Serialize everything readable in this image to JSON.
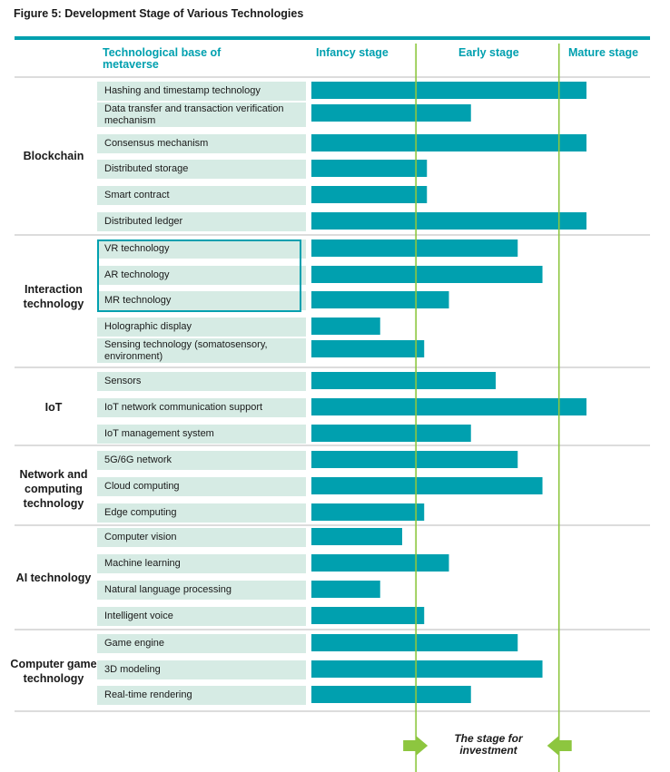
{
  "title": "Figure 5: Development Stage of Various Technologies",
  "headers": {
    "base": "Technological base of metaverse",
    "infancy": "Infancy stage",
    "early": "Early stage",
    "mature": "Mature stage"
  },
  "note": "The stage for investment",
  "colors": {
    "bar": "#00a0af",
    "label_bg": "#d6ebe4",
    "divider": "#8dc63f",
    "rule": "#c8c8c8"
  },
  "chart_data": {
    "type": "bar",
    "orientation": "horizontal",
    "title": "Figure 5: Development Stage of Various Technologies",
    "xlim": [
      0,
      100
    ],
    "stage_boundaries": [
      38,
      90
    ],
    "stages": [
      "Infancy stage",
      "Early stage",
      "Mature stage"
    ],
    "groups": [
      {
        "name": "Blockchain",
        "items": [
          {
            "label": "Hashing and timestamp technology",
            "value": 100
          },
          {
            "label": "Data transfer and transaction verification mechanism",
            "value": 58
          },
          {
            "label": "Consensus mechanism",
            "value": 100
          },
          {
            "label": "Distributed storage",
            "value": 42
          },
          {
            "label": "Smart contract",
            "value": 42
          },
          {
            "label": "Distributed ledger",
            "value": 100
          }
        ]
      },
      {
        "name": "Interaction technology",
        "items": [
          {
            "label": "VR technology",
            "value": 75
          },
          {
            "label": "AR technology",
            "value": 84
          },
          {
            "label": "MR technology",
            "value": 50
          },
          {
            "label": "Holographic display",
            "value": 25
          },
          {
            "label": "Sensing technology (somatosensory, environment)",
            "value": 41
          }
        ]
      },
      {
        "name": "IoT",
        "items": [
          {
            "label": "Sensors",
            "value": 67
          },
          {
            "label": "IoT network communication support",
            "value": 100
          },
          {
            "label": "IoT management system",
            "value": 58
          }
        ]
      },
      {
        "name": "Network and computing technology",
        "items": [
          {
            "label": "5G/6G network",
            "value": 75
          },
          {
            "label": "Cloud computing",
            "value": 84
          },
          {
            "label": "Edge computing",
            "value": 41
          }
        ]
      },
      {
        "name": "AI technology",
        "items": [
          {
            "label": "Computer vision",
            "value": 33
          },
          {
            "label": "Machine learning",
            "value": 50
          },
          {
            "label": "Natural language processing",
            "value": 25
          },
          {
            "label": "Intelligent voice",
            "value": 41
          }
        ]
      },
      {
        "name": "Computer game technology",
        "items": [
          {
            "label": "Game engine",
            "value": 75
          },
          {
            "label": "3D modeling",
            "value": 84
          },
          {
            "label": "Real-time rendering",
            "value": 58
          }
        ]
      }
    ]
  }
}
